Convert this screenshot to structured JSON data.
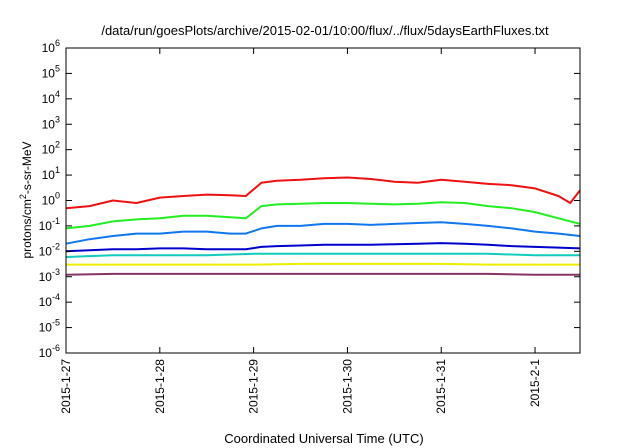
{
  "chart_data": {
    "type": "line",
    "title": "/data/run/goesPlots/archive/2015-02-01/10:00/flux/../flux/5daysEarthFluxes.txt",
    "xlabel": "Coordinated Universal Time (UTC)",
    "ylabel": {
      "base": "protons/cm",
      "sup": "2",
      "rest": "-s-sr-MeV"
    },
    "x_axis": {
      "type": "date",
      "range": [
        "2015-01-27",
        "2015-02-01T11:30"
      ],
      "ticks": [
        {
          "date": "2015-01-27",
          "label": "2015-1-27"
        },
        {
          "date": "2015-01-28",
          "label": "2015-1-28"
        },
        {
          "date": "2015-01-29",
          "label": "2015-1-29"
        },
        {
          "date": "2015-01-30",
          "label": "2015-1-30"
        },
        {
          "date": "2015-01-31",
          "label": "2015-1-31"
        },
        {
          "date": "2015-02-01",
          "label": "2015-2-1"
        }
      ]
    },
    "y_axis": {
      "scale": "log",
      "range": [
        1e-06,
        1000000.0
      ],
      "ticks": [
        {
          "value": 1000000.0,
          "mant": "10",
          "exp": "6"
        },
        {
          "value": 100000.0,
          "mant": "10",
          "exp": "5"
        },
        {
          "value": 10000.0,
          "mant": "10",
          "exp": "4"
        },
        {
          "value": 1000.0,
          "mant": "10",
          "exp": "3"
        },
        {
          "value": 100.0,
          "mant": "10",
          "exp": "2"
        },
        {
          "value": 10.0,
          "mant": "10",
          "exp": "1"
        },
        {
          "value": 1.0,
          "mant": "10",
          "exp": "0"
        },
        {
          "value": 0.1,
          "mant": "10",
          "exp": "-1"
        },
        {
          "value": 0.01,
          "mant": "10",
          "exp": "-2"
        },
        {
          "value": 0.001,
          "mant": "10",
          "exp": "-3"
        },
        {
          "value": 0.0001,
          "mant": "10",
          "exp": "-4"
        },
        {
          "value": 1e-05,
          "mant": "10",
          "exp": "-5"
        },
        {
          "value": 1e-06,
          "mant": "10",
          "exp": "-6"
        }
      ]
    },
    "grid": false,
    "legend": "none",
    "series": [
      {
        "color": "#ee1111",
        "values": [
          [
            "2015-01-27T00:00",
            0.5
          ],
          [
            "2015-01-27T06:00",
            0.6
          ],
          [
            "2015-01-27T12:00",
            1.0
          ],
          [
            "2015-01-27T18:00",
            0.8
          ],
          [
            "2015-01-28T00:00",
            1.3
          ],
          [
            "2015-01-28T06:00",
            1.5
          ],
          [
            "2015-01-28T12:00",
            1.7
          ],
          [
            "2015-01-28T18:00",
            1.6
          ],
          [
            "2015-01-28T22:00",
            1.5
          ],
          [
            "2015-01-29T02:00",
            5.0
          ],
          [
            "2015-01-29T06:00",
            6.0
          ],
          [
            "2015-01-29T12:00",
            6.5
          ],
          [
            "2015-01-29T18:00",
            7.5
          ],
          [
            "2015-01-30T00:00",
            8.0
          ],
          [
            "2015-01-30T06:00",
            7.0
          ],
          [
            "2015-01-30T12:00",
            5.5
          ],
          [
            "2015-01-30T18:00",
            5.0
          ],
          [
            "2015-01-31T00:00",
            6.5
          ],
          [
            "2015-01-31T06:00",
            5.5
          ],
          [
            "2015-01-31T12:00",
            4.5
          ],
          [
            "2015-01-31T18:00",
            4.0
          ],
          [
            "2015-02-01T00:00",
            3.0
          ],
          [
            "2015-02-01T06:00",
            1.5
          ],
          [
            "2015-02-01T09:00",
            0.8
          ],
          [
            "2015-02-01T11:30",
            2.5
          ]
        ]
      },
      {
        "color": "#22ee22",
        "values": [
          [
            "2015-01-27T00:00",
            0.08
          ],
          [
            "2015-01-27T06:00",
            0.1
          ],
          [
            "2015-01-27T12:00",
            0.15
          ],
          [
            "2015-01-27T18:00",
            0.18
          ],
          [
            "2015-01-28T00:00",
            0.2
          ],
          [
            "2015-01-28T06:00",
            0.25
          ],
          [
            "2015-01-28T12:00",
            0.25
          ],
          [
            "2015-01-28T18:00",
            0.22
          ],
          [
            "2015-01-28T22:00",
            0.2
          ],
          [
            "2015-01-29T02:00",
            0.6
          ],
          [
            "2015-01-29T06:00",
            0.7
          ],
          [
            "2015-01-29T12:00",
            0.75
          ],
          [
            "2015-01-29T18:00",
            0.8
          ],
          [
            "2015-01-30T00:00",
            0.8
          ],
          [
            "2015-01-30T06:00",
            0.75
          ],
          [
            "2015-01-30T12:00",
            0.7
          ],
          [
            "2015-01-30T18:00",
            0.75
          ],
          [
            "2015-01-31T00:00",
            0.85
          ],
          [
            "2015-01-31T06:00",
            0.8
          ],
          [
            "2015-01-31T12:00",
            0.6
          ],
          [
            "2015-01-31T18:00",
            0.5
          ],
          [
            "2015-02-01T00:00",
            0.35
          ],
          [
            "2015-02-01T06:00",
            0.2
          ],
          [
            "2015-02-01T11:30",
            0.12
          ]
        ]
      },
      {
        "color": "#1177ee",
        "values": [
          [
            "2015-01-27T00:00",
            0.02
          ],
          [
            "2015-01-27T06:00",
            0.03
          ],
          [
            "2015-01-27T12:00",
            0.04
          ],
          [
            "2015-01-27T18:00",
            0.05
          ],
          [
            "2015-01-28T00:00",
            0.05
          ],
          [
            "2015-01-28T06:00",
            0.06
          ],
          [
            "2015-01-28T12:00",
            0.06
          ],
          [
            "2015-01-28T18:00",
            0.05
          ],
          [
            "2015-01-28T22:00",
            0.05
          ],
          [
            "2015-01-29T02:00",
            0.08
          ],
          [
            "2015-01-29T06:00",
            0.1
          ],
          [
            "2015-01-29T12:00",
            0.1
          ],
          [
            "2015-01-29T18:00",
            0.12
          ],
          [
            "2015-01-30T00:00",
            0.12
          ],
          [
            "2015-01-30T06:00",
            0.11
          ],
          [
            "2015-01-30T12:00",
            0.12
          ],
          [
            "2015-01-30T18:00",
            0.13
          ],
          [
            "2015-01-31T00:00",
            0.14
          ],
          [
            "2015-01-31T06:00",
            0.12
          ],
          [
            "2015-01-31T12:00",
            0.1
          ],
          [
            "2015-01-31T18:00",
            0.08
          ],
          [
            "2015-02-01T00:00",
            0.06
          ],
          [
            "2015-02-01T06:00",
            0.05
          ],
          [
            "2015-02-01T11:30",
            0.04
          ]
        ]
      },
      {
        "color": "#0000cc",
        "values": [
          [
            "2015-01-27T00:00",
            0.01
          ],
          [
            "2015-01-27T06:00",
            0.011
          ],
          [
            "2015-01-27T12:00",
            0.012
          ],
          [
            "2015-01-27T18:00",
            0.012
          ],
          [
            "2015-01-28T00:00",
            0.013
          ],
          [
            "2015-01-28T06:00",
            0.013
          ],
          [
            "2015-01-28T12:00",
            0.012
          ],
          [
            "2015-01-28T18:00",
            0.012
          ],
          [
            "2015-01-28T22:00",
            0.012
          ],
          [
            "2015-01-29T02:00",
            0.015
          ],
          [
            "2015-01-29T06:00",
            0.016
          ],
          [
            "2015-01-29T12:00",
            0.017
          ],
          [
            "2015-01-29T18:00",
            0.018
          ],
          [
            "2015-01-30T00:00",
            0.018
          ],
          [
            "2015-01-30T06:00",
            0.018
          ],
          [
            "2015-01-30T12:00",
            0.019
          ],
          [
            "2015-01-30T18:00",
            0.02
          ],
          [
            "2015-01-31T00:00",
            0.021
          ],
          [
            "2015-01-31T06:00",
            0.02
          ],
          [
            "2015-01-31T12:00",
            0.018
          ],
          [
            "2015-01-31T18:00",
            0.016
          ],
          [
            "2015-02-01T00:00",
            0.015
          ],
          [
            "2015-02-01T06:00",
            0.014
          ],
          [
            "2015-02-01T11:30",
            0.013
          ]
        ]
      },
      {
        "color": "#11ccbb",
        "values": [
          [
            "2015-01-27T00:00",
            0.006
          ],
          [
            "2015-01-27T12:00",
            0.007
          ],
          [
            "2015-01-28T00:00",
            0.007
          ],
          [
            "2015-01-28T12:00",
            0.007
          ],
          [
            "2015-01-29T00:00",
            0.008
          ],
          [
            "2015-01-29T12:00",
            0.008
          ],
          [
            "2015-01-30T00:00",
            0.008
          ],
          [
            "2015-01-30T12:00",
            0.008
          ],
          [
            "2015-01-31T00:00",
            0.008
          ],
          [
            "2015-01-31T12:00",
            0.008
          ],
          [
            "2015-02-01T00:00",
            0.007
          ],
          [
            "2015-02-01T11:30",
            0.007
          ]
        ]
      },
      {
        "color": "#eeee00",
        "values": [
          [
            "2015-01-27T00:00",
            0.003
          ],
          [
            "2015-01-27T12:00",
            0.003
          ],
          [
            "2015-01-28T00:00",
            0.003
          ],
          [
            "2015-01-28T12:00",
            0.003
          ],
          [
            "2015-01-29T00:00",
            0.003
          ],
          [
            "2015-01-29T12:00",
            0.0032
          ],
          [
            "2015-01-30T00:00",
            0.0032
          ],
          [
            "2015-01-30T12:00",
            0.0032
          ],
          [
            "2015-01-31T00:00",
            0.0032
          ],
          [
            "2015-01-31T12:00",
            0.003
          ],
          [
            "2015-02-01T00:00",
            0.003
          ],
          [
            "2015-02-01T11:30",
            0.003
          ]
        ]
      },
      {
        "color": "#883366",
        "values": [
          [
            "2015-01-27T00:00",
            0.0012
          ],
          [
            "2015-01-27T12:00",
            0.0013
          ],
          [
            "2015-01-28T00:00",
            0.0013
          ],
          [
            "2015-01-28T12:00",
            0.0013
          ],
          [
            "2015-01-29T00:00",
            0.0013
          ],
          [
            "2015-01-29T12:00",
            0.0013
          ],
          [
            "2015-01-30T00:00",
            0.0013
          ],
          [
            "2015-01-30T12:00",
            0.0013
          ],
          [
            "2015-01-31T00:00",
            0.0013
          ],
          [
            "2015-01-31T12:00",
            0.0013
          ],
          [
            "2015-02-01T00:00",
            0.0012
          ],
          [
            "2015-02-01T11:30",
            0.0012
          ]
        ]
      }
    ]
  }
}
